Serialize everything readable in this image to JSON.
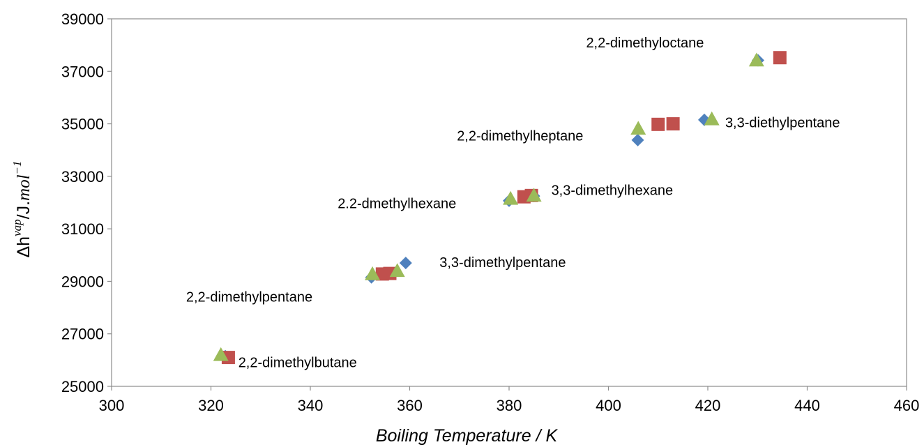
{
  "chart_data": {
    "type": "scatter",
    "title": "",
    "xlabel": "Boiling Temperature / K",
    "ylabel": {
      "prefix": "Δh",
      "sup": "vap",
      "middle": "/J.",
      "unit": "mol",
      "unit_sup": "−1"
    },
    "xlim": [
      300,
      460
    ],
    "ylim": [
      25000,
      39000
    ],
    "x_ticks": [
      "300",
      "320",
      "340",
      "360",
      "380",
      "400",
      "420",
      "440",
      "460"
    ],
    "y_ticks": [
      "25000",
      "27000",
      "29000",
      "31000",
      "33000",
      "35000",
      "37000",
      "39000"
    ],
    "grid": false,
    "legend": "none",
    "series": [
      {
        "marker": "diamond",
        "color": "#4f81bd",
        "points": [
          [
            322.9,
            26150
          ],
          [
            352.3,
            29150
          ],
          [
            359.2,
            29700
          ],
          [
            380.0,
            32070
          ],
          [
            385.0,
            32250
          ],
          [
            405.9,
            34380
          ],
          [
            419.3,
            35150
          ],
          [
            430.1,
            37420
          ]
        ]
      },
      {
        "marker": "square",
        "color": "#c0504d",
        "points": [
          [
            323.5,
            26100
          ],
          [
            354.5,
            29280
          ],
          [
            356.0,
            29300
          ],
          [
            383.0,
            32220
          ],
          [
            384.5,
            32270
          ],
          [
            410.0,
            34980
          ],
          [
            413.0,
            35000
          ],
          [
            434.5,
            37520
          ]
        ]
      },
      {
        "marker": "triangle",
        "color": "#9bbb59",
        "points": [
          [
            322.0,
            26200
          ],
          [
            352.5,
            29280
          ],
          [
            357.5,
            29400
          ],
          [
            380.3,
            32150
          ],
          [
            385.0,
            32270
          ],
          [
            406.0,
            34820
          ],
          [
            420.8,
            35180
          ],
          [
            429.8,
            37420
          ]
        ]
      }
    ],
    "annotations": [
      {
        "text": "2,2-dimethyloctane",
        "x": 395.5,
        "y": 38100
      },
      {
        "text": "3,3-diethylpentane",
        "x": 423.5,
        "y": 35050
      },
      {
        "text": "2,2-dimethylheptane",
        "x": 369.5,
        "y": 34550
      },
      {
        "text": "3,3-dimethylhexane",
        "x": 388.5,
        "y": 32480
      },
      {
        "text": "2.2-dmethylhexane",
        "x": 345.5,
        "y": 31980
      },
      {
        "text": "3,3-dimethylpentane",
        "x": 366.0,
        "y": 29730
      },
      {
        "text": "2,2-dimethylpentane",
        "x": 315.0,
        "y": 28420
      },
      {
        "text": "2,2-dimethylbutane",
        "x": 325.5,
        "y": 25920
      }
    ]
  }
}
